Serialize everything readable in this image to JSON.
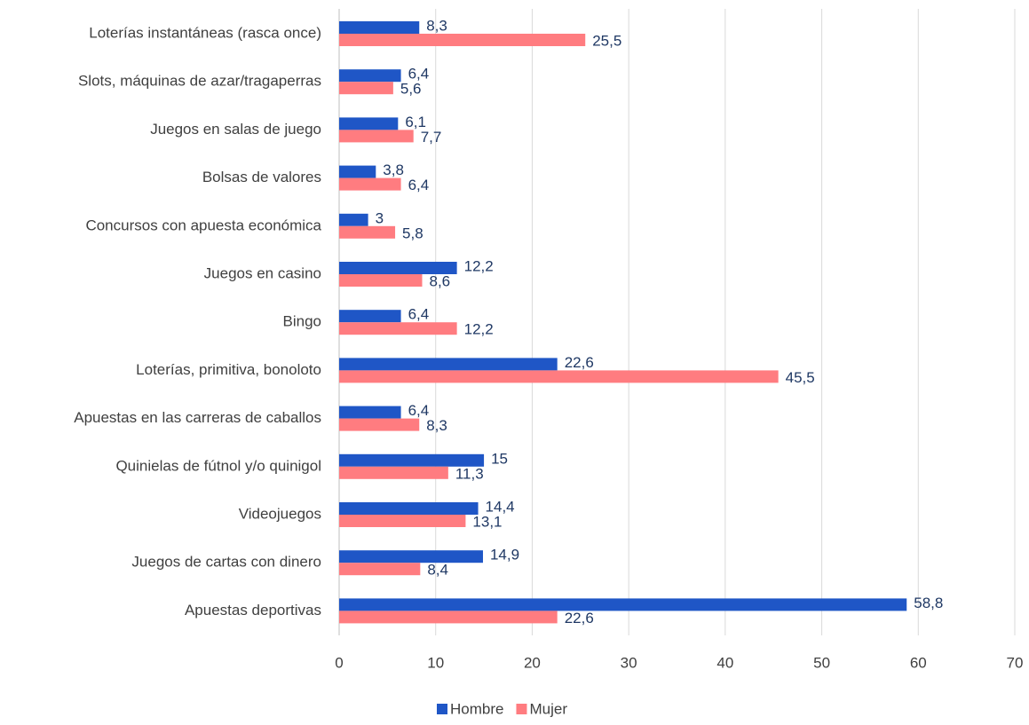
{
  "chart_data": {
    "type": "bar",
    "orientation": "horizontal",
    "categories": [
      "Loterías instantáneas (rasca once)",
      "Slots, máquinas de azar/tragaperras",
      "Juegos en salas de juego",
      "Bolsas de valores",
      "Concursos con apuesta económica",
      "Juegos en casino",
      "Bingo",
      "Loterías, primitiva, bonoloto",
      "Apuestas en las carreras de caballos",
      "Quinielas de fútnol y/o quinigol",
      "Videojuegos",
      "Juegos de cartas con dinero",
      "Apuestas deportivas"
    ],
    "series": [
      {
        "name": "Hombre",
        "color": "#1f56c6",
        "values": [
          8.3,
          6.4,
          6.1,
          3.8,
          3,
          12.2,
          6.4,
          22.6,
          6.4,
          15,
          14.4,
          14.9,
          58.8
        ],
        "value_labels": [
          "8,3",
          "6,4",
          "6,1",
          "3,8",
          "3",
          "12,2",
          "6,4",
          "22,6",
          "6,4",
          "15",
          "14,4",
          "14,9",
          "58,8"
        ]
      },
      {
        "name": "Mujer",
        "color": "#ff7c80",
        "values": [
          25.5,
          5.6,
          7.7,
          6.4,
          5.8,
          8.6,
          12.2,
          45.5,
          8.3,
          11.3,
          13.1,
          8.4,
          22.6
        ],
        "value_labels": [
          "25,5",
          "5,6",
          "7,7",
          "6,4",
          "5,8",
          "8,6",
          "12,2",
          "45,5",
          "8,3",
          "11,3",
          "13,1",
          "8,4",
          "22,6"
        ]
      }
    ],
    "xlim": [
      0,
      70
    ],
    "xticks": [
      0,
      10,
      20,
      30,
      40,
      50,
      60,
      70
    ],
    "grid": true,
    "legend": "bottom"
  }
}
